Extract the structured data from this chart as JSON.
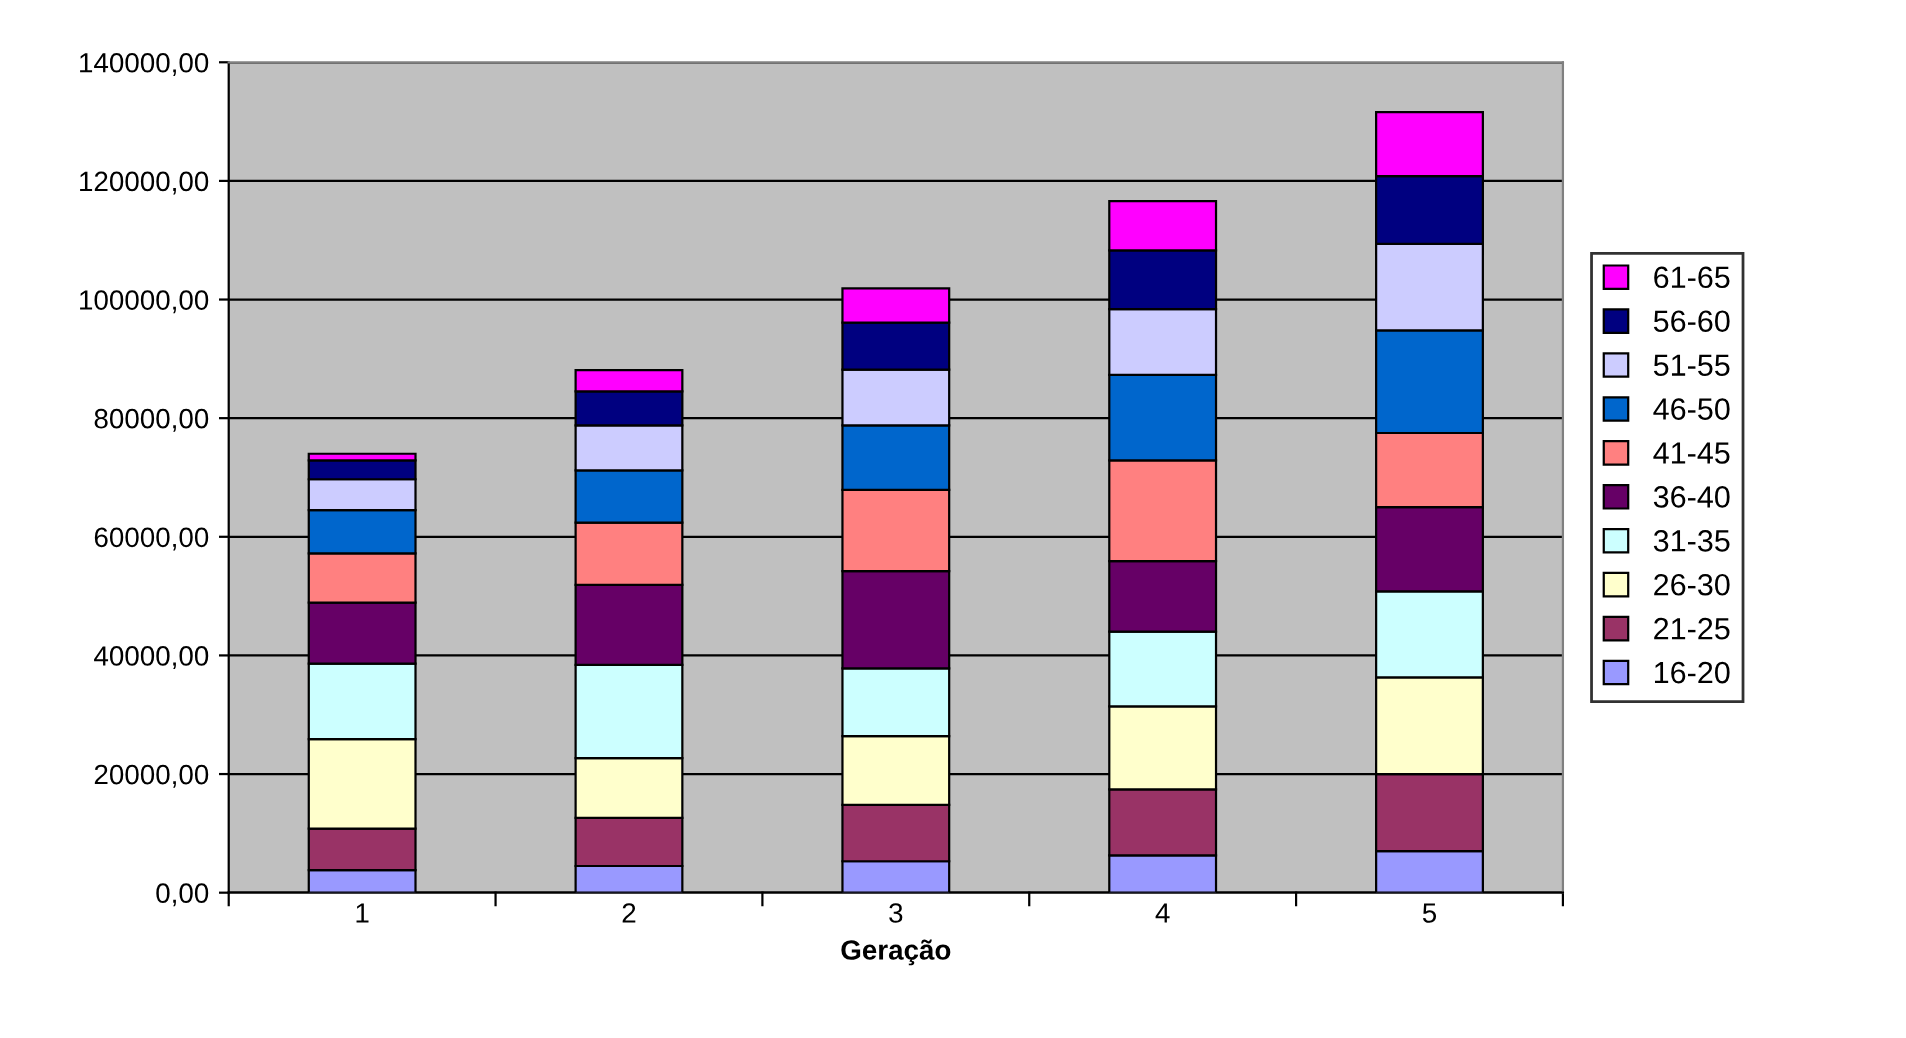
{
  "chart_data": {
    "type": "bar",
    "stacked": true,
    "xlabel": "Geração",
    "categories": [
      "1",
      "2",
      "3",
      "4",
      "5"
    ],
    "series": [
      {
        "name": "16-20",
        "color": "#9999ff",
        "values": [
          3800,
          4500,
          5300,
          6300,
          7000
        ]
      },
      {
        "name": "21-25",
        "color": "#993366",
        "values": [
          7000,
          8100,
          9500,
          11100,
          13000
        ]
      },
      {
        "name": "26-30",
        "color": "#ffffcc",
        "values": [
          15100,
          10100,
          11600,
          14000,
          16300
        ]
      },
      {
        "name": "31-35",
        "color": "#ccffff",
        "values": [
          12700,
          15700,
          11400,
          12600,
          14500
        ]
      },
      {
        "name": "36-40",
        "color": "#660066",
        "values": [
          10300,
          13500,
          16400,
          11900,
          14200
        ]
      },
      {
        "name": "41-45",
        "color": "#ff8080",
        "values": [
          8300,
          10500,
          13700,
          17000,
          12500
        ]
      },
      {
        "name": "46-50",
        "color": "#0066cc",
        "values": [
          7300,
          8800,
          10900,
          14400,
          17300
        ]
      },
      {
        "name": "51-55",
        "color": "#ccccff",
        "values": [
          5200,
          7600,
          9400,
          11100,
          14600
        ]
      },
      {
        "name": "56-60",
        "color": "#000080",
        "values": [
          3200,
          5700,
          7900,
          9900,
          11400
        ]
      },
      {
        "name": "61-65",
        "color": "#ff00ff",
        "values": [
          1100,
          3600,
          5800,
          8300,
          10800
        ]
      }
    ],
    "ylim": [
      0,
      140000
    ],
    "yticks": [
      {
        "value": 0,
        "label": "0,00"
      },
      {
        "value": 20000,
        "label": "20000,00"
      },
      {
        "value": 40000,
        "label": "40000,00"
      },
      {
        "value": 60000,
        "label": "60000,00"
      },
      {
        "value": 80000,
        "label": "80000,00"
      },
      {
        "value": 100000,
        "label": "100000,00"
      },
      {
        "value": 120000,
        "label": "120000,00"
      },
      {
        "value": 140000,
        "label": "140000,00"
      }
    ],
    "grid": "y",
    "legend": "right"
  }
}
